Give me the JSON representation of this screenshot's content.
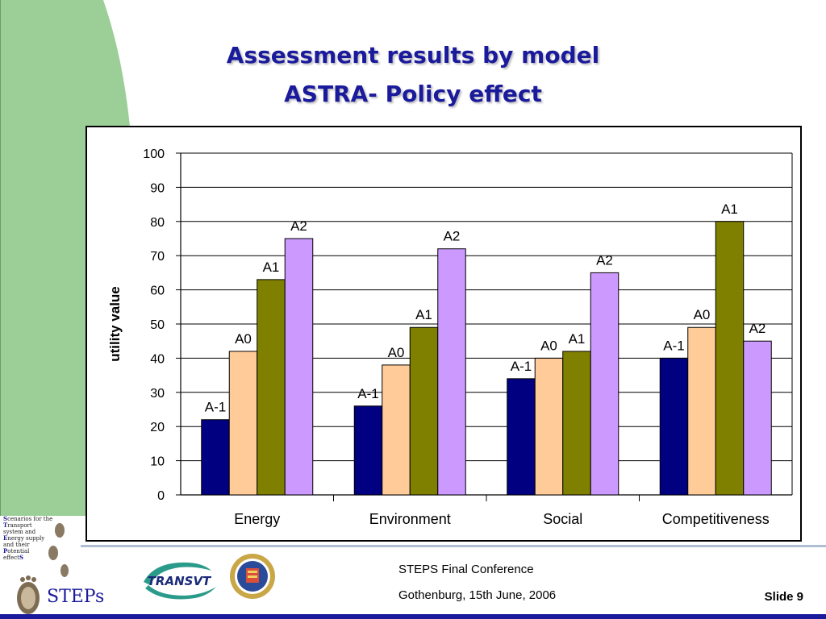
{
  "slide": {
    "title_line1": "Assessment results by model",
    "title_line2": "ASTRA- Policy effect",
    "conference": "STEPS Final Conference",
    "date_place": "Gothenburg, 15th June, 2006",
    "slide_number": "Slide 9",
    "logo_text": "STEPs",
    "transvt_logo_text": "TRANSVT",
    "tagline_lines": [
      [
        "S",
        "cenarios for the"
      ],
      [
        "T",
        "ransport"
      ],
      [
        "",
        "system and"
      ],
      [
        "E",
        "nergy supply"
      ],
      [
        "",
        "and their"
      ],
      [
        "P",
        "otential"
      ],
      [
        "",
        "effect",
        "S"
      ]
    ]
  },
  "colors": {
    "title": "#1a1a9c",
    "green_band": "#9ccf97",
    "A-1": "#000080",
    "A0": "#ffcc99",
    "A1": "#808000",
    "A2": "#cc99ff"
  },
  "chart_data": {
    "type": "bar",
    "ylabel": "utility value",
    "xlabel": "",
    "ylim": [
      0,
      100
    ],
    "yticks": [
      0,
      10,
      20,
      30,
      40,
      50,
      60,
      70,
      80,
      90,
      100
    ],
    "grid": true,
    "categories": [
      "Energy",
      "Environment",
      "Social",
      "Competitiveness"
    ],
    "series": [
      {
        "name": "A-1",
        "values": [
          22,
          26,
          34,
          40
        ]
      },
      {
        "name": "A0",
        "values": [
          42,
          38,
          40,
          49
        ]
      },
      {
        "name": "A1",
        "values": [
          63,
          49,
          42,
          80
        ]
      },
      {
        "name": "A2",
        "values": [
          75,
          72,
          65,
          45
        ]
      }
    ]
  }
}
